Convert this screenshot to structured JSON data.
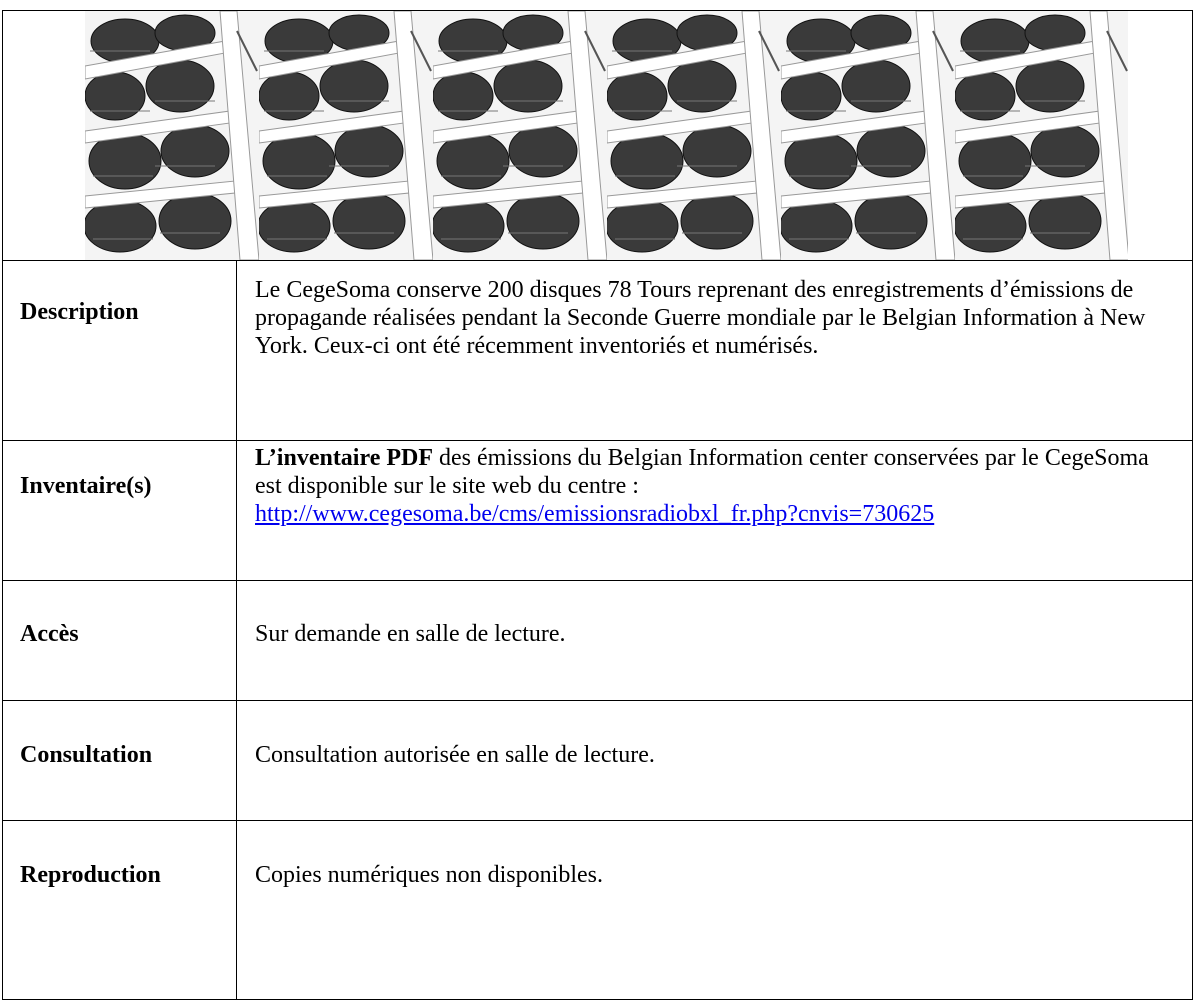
{
  "table": {
    "rows": [
      {
        "label": "Description",
        "text": "Le CegeSoma conserve 200 disques 78 Tours reprenant des enregistrements d’émissions de propagande réalisées pendant la Seconde Guerre mondiale par le Belgian Information à New York. Ceux-ci ont été récemment inventoriés et numérisés."
      },
      {
        "label": "Inventaire(s)",
        "bold": "L’inventaire PDF",
        "text": " des émissions du Belgian Information center conservées par le CegeSoma est disponible sur le site web du centre :",
        "link": "http://www.cegesoma.be/cms/emissionsradiobxl_fr.php?cnvis=730625"
      },
      {
        "label": "Accès",
        "text": "Sur demande en salle de lecture."
      },
      {
        "label": "Consultation",
        "text": "Consultation autorisée en salle de lecture."
      },
      {
        "label": "Reproduction",
        "text": "Copies numériques non disponibles."
      }
    ]
  }
}
